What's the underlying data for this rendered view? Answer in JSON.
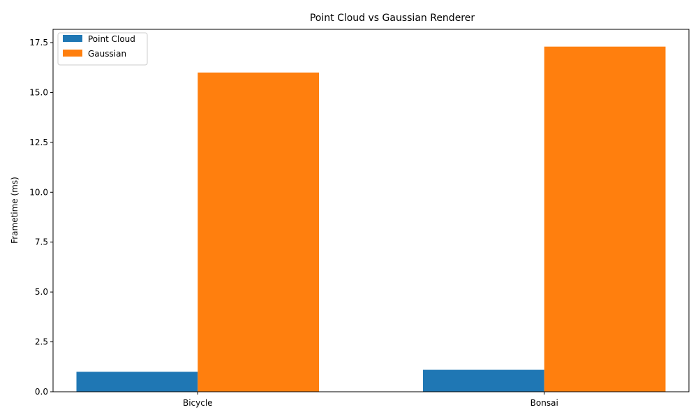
{
  "chart_data": {
    "type": "bar",
    "title": "Point Cloud vs Gaussian Renderer",
    "xlabel": "",
    "ylabel": "Frametime (ms)",
    "categories": [
      "Bicycle",
      "Bonsai"
    ],
    "series": [
      {
        "name": "Point Cloud",
        "color": "#1f77b4",
        "values": [
          1.0,
          1.1
        ]
      },
      {
        "name": "Gaussian",
        "color": "#ff7f0e",
        "values": [
          16.0,
          17.3
        ]
      }
    ],
    "ylim": [
      0,
      18.165
    ],
    "yticks": [
      "0.0",
      "2.5",
      "5.0",
      "7.5",
      "10.0",
      "12.5",
      "15.0",
      "17.5"
    ],
    "grid": false,
    "legend": "top-left"
  }
}
